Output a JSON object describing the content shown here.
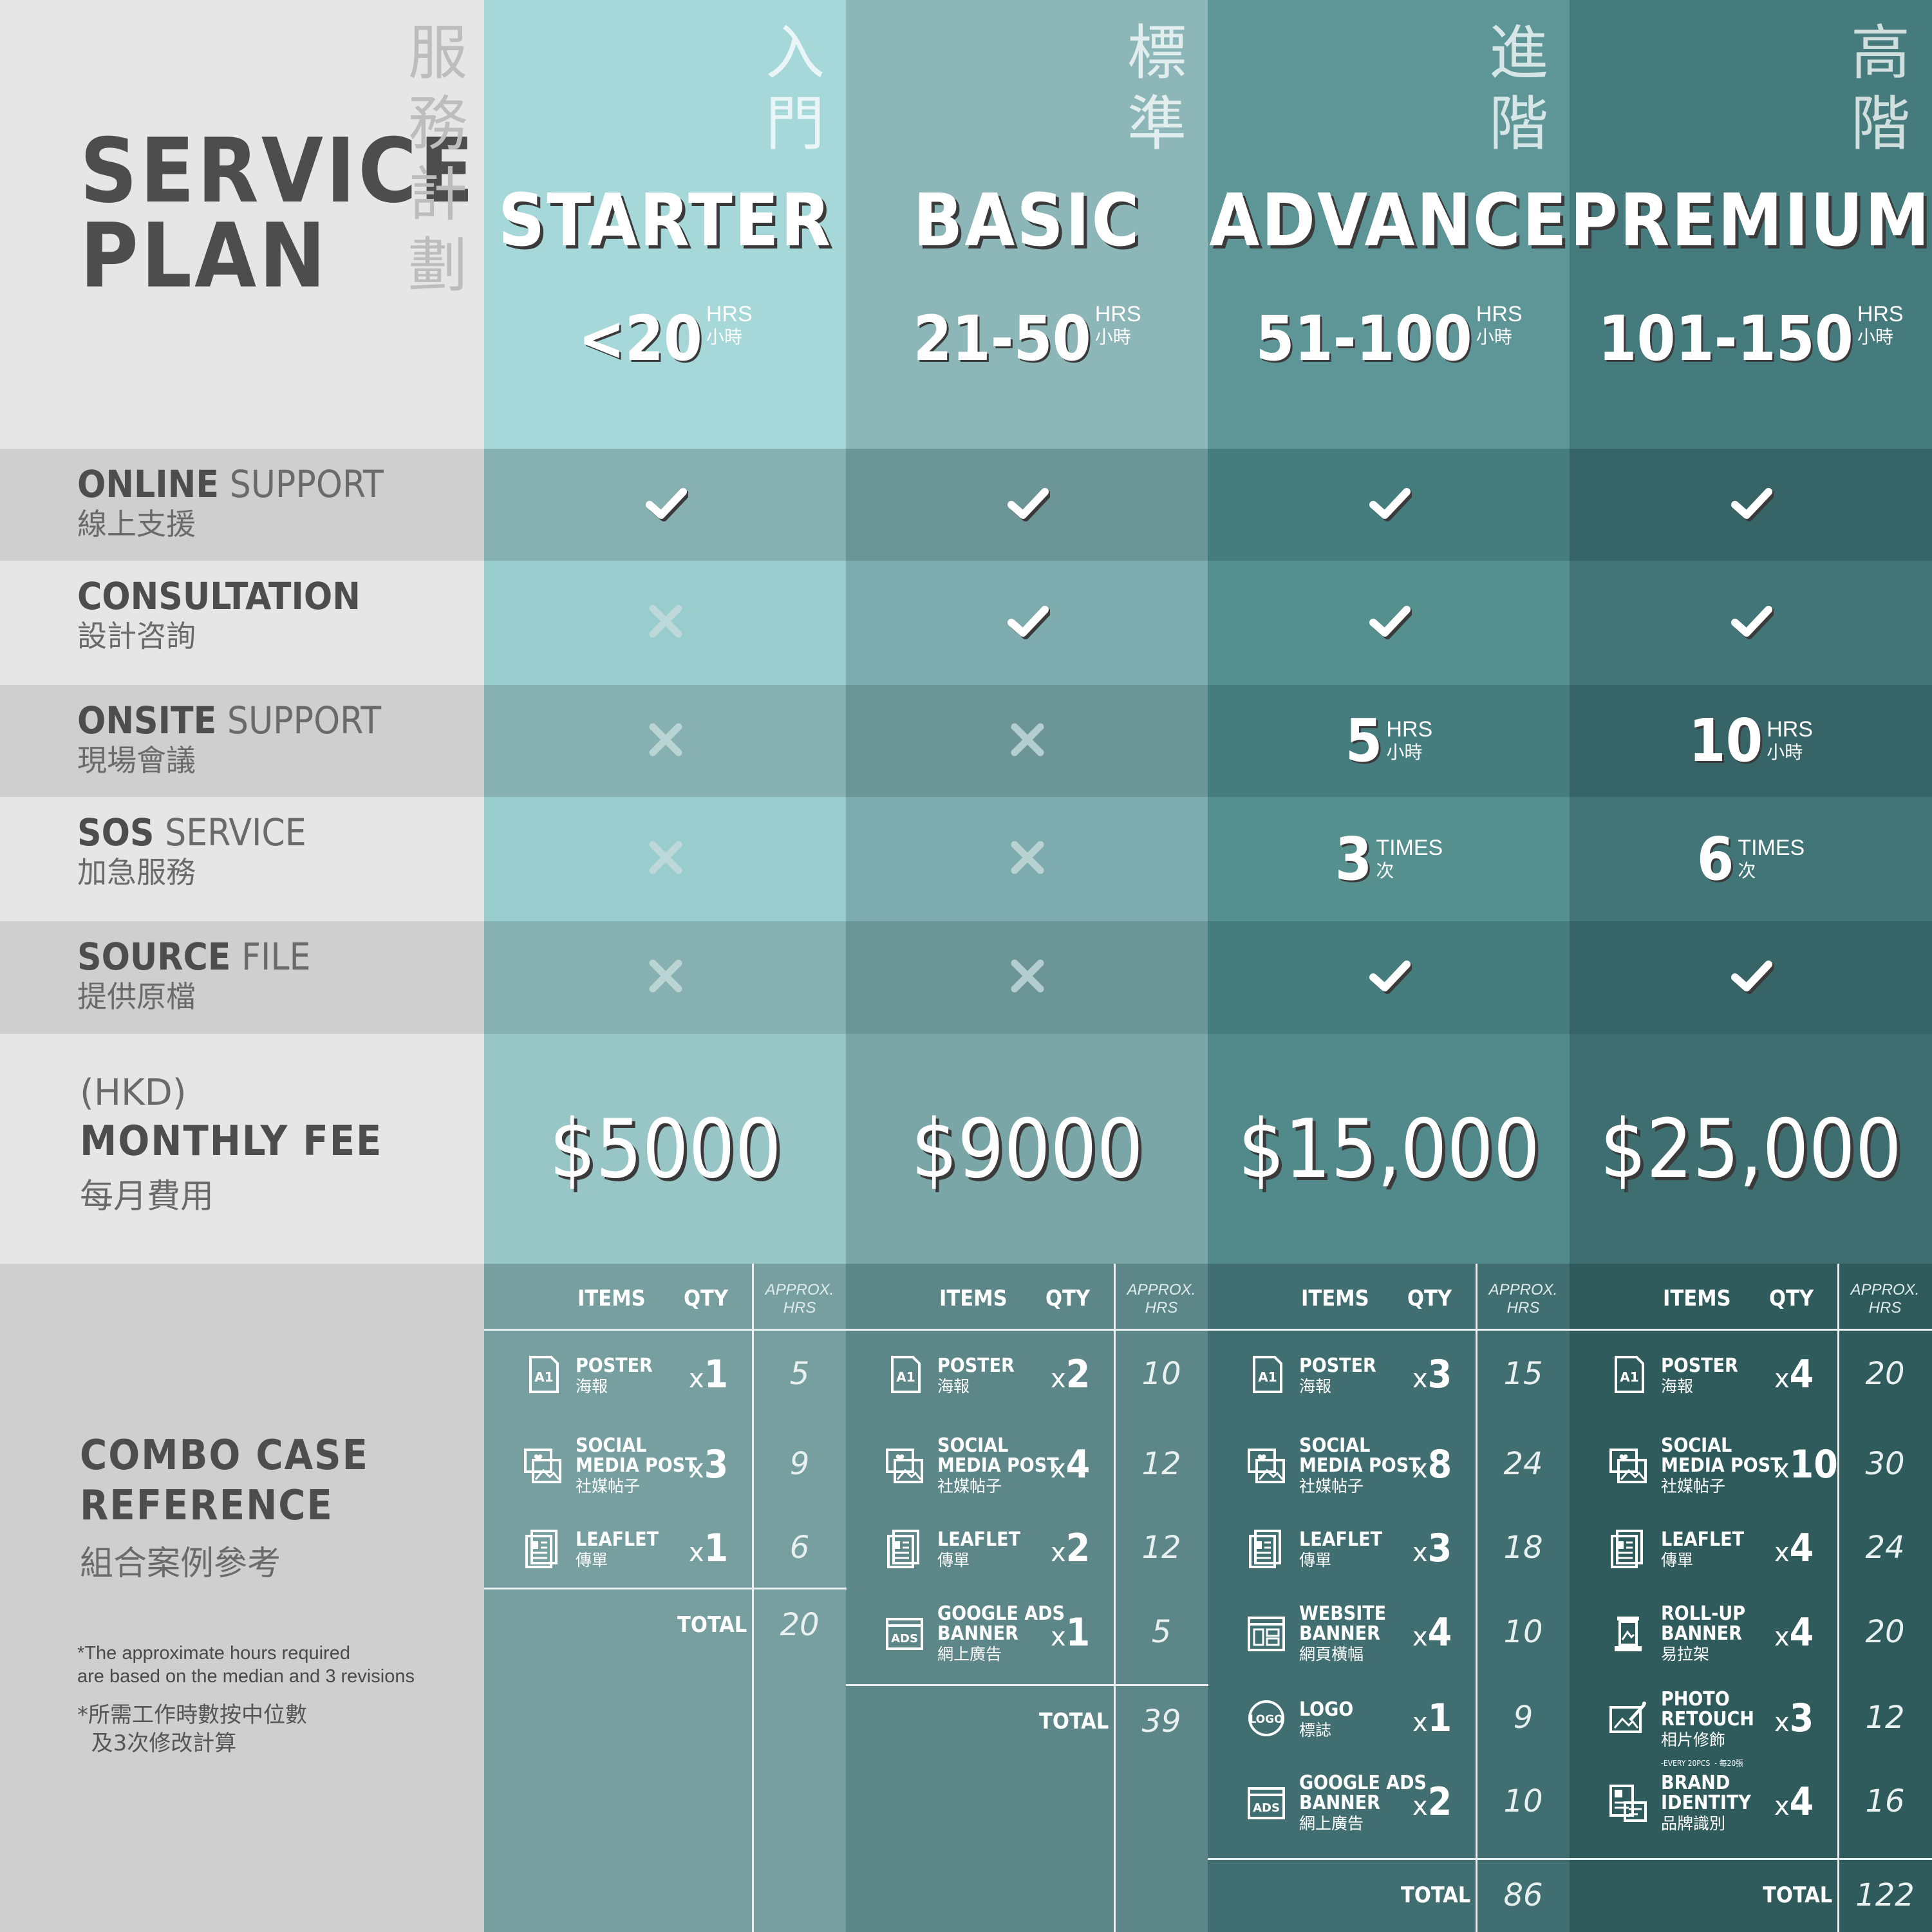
{
  "title": {
    "line1": "SERVICE",
    "line2": "PLAN",
    "zh": [
      "服",
      "務",
      "計",
      "劃"
    ]
  },
  "colors": {
    "col1_header": "#a6d8d9",
    "col2_header": "#8cb6b8",
    "col3_header": "#5e9698",
    "col4_header": "#457b7d",
    "grey_header": "#e6e6e6"
  },
  "plans": [
    {
      "name": "STARTER",
      "zh": [
        "入",
        "門"
      ],
      "hours": "<20",
      "unit": "HRS",
      "unit_zh": "小時",
      "fee": "$5000"
    },
    {
      "name": "BASIC",
      "zh": [
        "標",
        "準"
      ],
      "hours": "21-50",
      "unit": "HRS",
      "unit_zh": "小時",
      "fee": "$9000"
    },
    {
      "name": "ADVANCE",
      "zh": [
        "進",
        "階"
      ],
      "hours": "51-100",
      "unit": "HRS",
      "unit_zh": "小時",
      "fee": "$15,000"
    },
    {
      "name": "PREMIUM",
      "zh": [
        "高",
        "階"
      ],
      "hours": "101-150",
      "unit": "HRS",
      "unit_zh": "小時",
      "fee": "$25,000"
    }
  ],
  "features": [
    {
      "bold": "ONLINE",
      "rest": " SUPPORT",
      "zh": "線上支援",
      "values": [
        "check",
        "check",
        "check",
        "check"
      ]
    },
    {
      "bold": "CONSULTATION",
      "rest": "",
      "zh": "設計咨詢",
      "values": [
        "cross",
        "check",
        "check",
        "check"
      ]
    },
    {
      "bold": "ONSITE",
      "rest": " SUPPORT",
      "zh": "現場會議",
      "values": [
        "cross",
        "cross",
        {
          "num": "5",
          "unit": "HRS",
          "unit_zh": "小時"
        },
        {
          "num": "10",
          "unit": "HRS",
          "unit_zh": "小時"
        }
      ]
    },
    {
      "bold": "SOS",
      "rest": " SERVICE",
      "zh": "加急服務",
      "values": [
        "cross",
        "cross",
        {
          "num": "3",
          "unit": "TIMES",
          "unit_zh": "次"
        },
        {
          "num": "6",
          "unit": "TIMES",
          "unit_zh": "次"
        }
      ]
    },
    {
      "bold": "SOURCE",
      "rest": " FILE",
      "zh": "提供原檔",
      "values": [
        "cross",
        "cross",
        "check",
        "check"
      ]
    }
  ],
  "fee_label": {
    "currency": "(HKD)",
    "label": "MONTHLY FEE",
    "zh": "每月費用"
  },
  "combo_label": {
    "line1": "COMBO CASE",
    "line2": "REFERENCE",
    "zh": "組合案例參考",
    "note_en": "*The approximate hours required\nare based on the median and 3 revisions",
    "note_zh": "*所需工作時數按中位數\n  及3次修改計算"
  },
  "table_headers": {
    "items": "ITEMS",
    "qty": "QTY",
    "hrs": "APPROX.\nHRS",
    "total": "TOTAL"
  },
  "combos": [
    {
      "items": [
        {
          "icon": "poster-icon",
          "name": "POSTER",
          "zh": "海報",
          "qty": "1",
          "hrs": "5"
        },
        {
          "icon": "social-media-icon",
          "name": "SOCIAL\nMEDIA POST",
          "zh": "社媒帖子",
          "qty": "3",
          "hrs": "9"
        },
        {
          "icon": "leaflet-icon",
          "name": "LEAFLET",
          "zh": "傳單",
          "qty": "1",
          "hrs": "6"
        }
      ],
      "total": "20"
    },
    {
      "items": [
        {
          "icon": "poster-icon",
          "name": "POSTER",
          "zh": "海報",
          "qty": "2",
          "hrs": "10"
        },
        {
          "icon": "social-media-icon",
          "name": "SOCIAL\nMEDIA POST",
          "zh": "社媒帖子",
          "qty": "4",
          "hrs": "12"
        },
        {
          "icon": "leaflet-icon",
          "name": "LEAFLET",
          "zh": "傳單",
          "qty": "2",
          "hrs": "12"
        },
        {
          "icon": "ads-icon",
          "name": "GOOGLE ADS\nBANNER",
          "zh": "網上廣告",
          "qty": "1",
          "hrs": "5"
        }
      ],
      "total": "39"
    },
    {
      "items": [
        {
          "icon": "poster-icon",
          "name": "POSTER",
          "zh": "海報",
          "qty": "3",
          "hrs": "15"
        },
        {
          "icon": "social-media-icon",
          "name": "SOCIAL\nMEDIA POST",
          "zh": "社媒帖子",
          "qty": "8",
          "hrs": "24"
        },
        {
          "icon": "leaflet-icon",
          "name": "LEAFLET",
          "zh": "傳單",
          "qty": "3",
          "hrs": "18"
        },
        {
          "icon": "website-banner-icon",
          "name": "WEBSITE\nBANNER",
          "zh": "網頁橫幅",
          "qty": "4",
          "hrs": "10"
        },
        {
          "icon": "logo-icon",
          "name": "LOGO",
          "zh": "標誌",
          "qty": "1",
          "hrs": "9"
        },
        {
          "icon": "ads-icon",
          "name": "GOOGLE ADS\nBANNER",
          "zh": "網上廣告",
          "qty": "2",
          "hrs": "10"
        }
      ],
      "total": "86"
    },
    {
      "items": [
        {
          "icon": "poster-icon",
          "name": "POSTER",
          "zh": "海報",
          "qty": "4",
          "hrs": "20"
        },
        {
          "icon": "social-media-icon",
          "name": "SOCIAL\nMEDIA POST",
          "zh": "社媒帖子",
          "qty": "10",
          "hrs": "30"
        },
        {
          "icon": "leaflet-icon",
          "name": "LEAFLET",
          "zh": "傳單",
          "qty": "4",
          "hrs": "24"
        },
        {
          "icon": "rollup-banner-icon",
          "name": "ROLL-UP\nBANNER",
          "zh": "易拉架",
          "qty": "4",
          "hrs": "20"
        },
        {
          "icon": "photo-retouch-icon",
          "name": "PHOTO\nRETOUCH",
          "zh": "相片修飾",
          "note": "-EVERY 20PCS  - 每20張",
          "qty": "3",
          "hrs": "12"
        },
        {
          "icon": "brand-identity-icon",
          "name": "BRAND\nIDENTITY",
          "zh": "品牌識別",
          "qty": "4",
          "hrs": "16"
        }
      ],
      "total": "122"
    }
  ]
}
